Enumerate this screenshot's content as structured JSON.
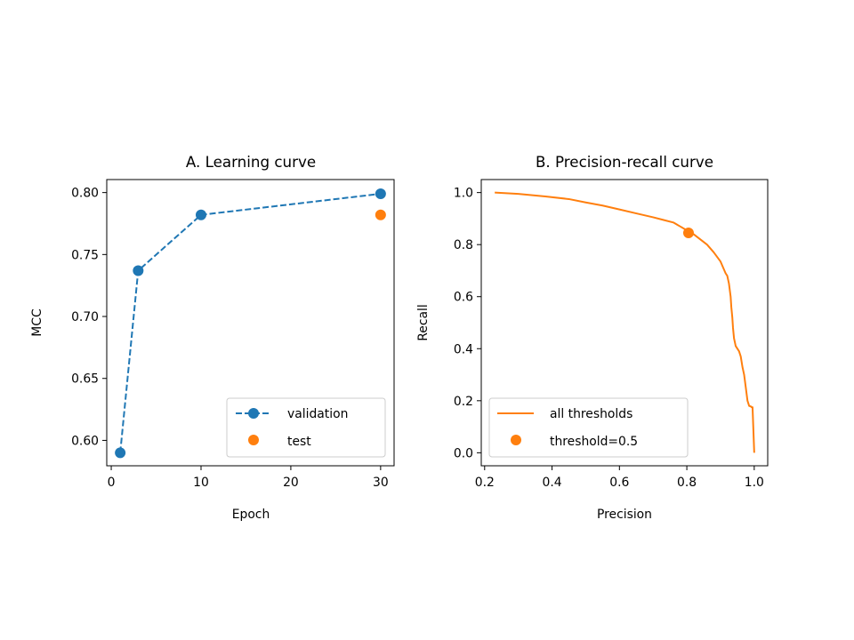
{
  "chart_data": [
    {
      "type": "line",
      "title": "A. Learning curve",
      "xlabel": "Epoch",
      "ylabel": "MCC",
      "xlim": [
        -0.5,
        31.5
      ],
      "ylim": [
        0.5795,
        0.8105
      ],
      "xticks": [
        0,
        10,
        20,
        30
      ],
      "xtick_labels": [
        "0",
        "10",
        "20",
        "30"
      ],
      "yticks": [
        0.6,
        0.65,
        0.7,
        0.75,
        0.8
      ],
      "ytick_labels": [
        "0.60",
        "0.65",
        "0.70",
        "0.75",
        "0.80"
      ],
      "grid": false,
      "legend_position": "lower-right",
      "series": [
        {
          "name": "validation",
          "style": "dashed-line-with-markers",
          "color": "#1f77b4",
          "x": [
            1,
            3,
            10,
            30
          ],
          "y": [
            0.59,
            0.737,
            0.782,
            0.799
          ]
        },
        {
          "name": "test",
          "style": "markers",
          "color": "#ff7f0e",
          "x": [
            30
          ],
          "y": [
            0.782
          ]
        }
      ]
    },
    {
      "type": "line",
      "title": "B. Precision-recall curve",
      "xlabel": "Precision",
      "ylabel": "Recall",
      "xlim": [
        0.19,
        1.04
      ],
      "ylim": [
        -0.05,
        1.05
      ],
      "xticks": [
        0.2,
        0.4,
        0.6,
        0.8,
        1.0
      ],
      "xtick_labels": [
        "0.2",
        "0.4",
        "0.6",
        "0.8",
        "1.0"
      ],
      "yticks": [
        0.0,
        0.2,
        0.4,
        0.6,
        0.8,
        1.0
      ],
      "ytick_labels": [
        "0.0",
        "0.2",
        "0.4",
        "0.6",
        "0.8",
        "1.0"
      ],
      "grid": false,
      "legend_position": "lower-left",
      "series": [
        {
          "name": "all thresholds",
          "style": "line",
          "color": "#ff7f0e",
          "x": [
            0.23,
            0.3,
            0.38,
            0.45,
            0.5,
            0.55,
            0.6,
            0.65,
            0.7,
            0.73,
            0.76,
            0.78,
            0.8,
            0.82,
            0.84,
            0.86,
            0.88,
            0.9,
            0.91,
            0.915,
            0.92,
            0.925,
            0.93,
            0.932,
            0.935,
            0.937,
            0.94,
            0.945,
            0.955,
            0.96,
            0.965,
            0.97,
            0.975,
            0.98,
            0.985,
            0.99,
            0.992,
            0.995,
            1.0
          ],
          "y": [
            1.0,
            0.995,
            0.985,
            0.975,
            0.962,
            0.95,
            0.935,
            0.92,
            0.905,
            0.895,
            0.885,
            0.87,
            0.855,
            0.84,
            0.82,
            0.8,
            0.77,
            0.735,
            0.705,
            0.69,
            0.68,
            0.65,
            0.6,
            0.56,
            0.52,
            0.48,
            0.44,
            0.41,
            0.39,
            0.37,
            0.33,
            0.3,
            0.25,
            0.2,
            0.18,
            0.178,
            0.175,
            0.175,
            0.0
          ]
        },
        {
          "name": "threshold=0.5",
          "style": "markers",
          "color": "#ff7f0e",
          "x": [
            0.805
          ],
          "y": [
            0.845
          ]
        }
      ]
    }
  ]
}
